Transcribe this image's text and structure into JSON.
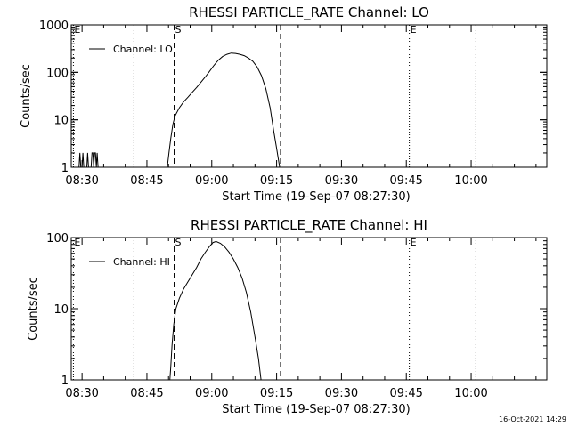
{
  "stamp": "16-Oct-2021 14:29",
  "chart_data": [
    {
      "type": "line",
      "title": "RHESSI PARTICLE_RATE Channel: LO",
      "xlabel": "Start Time (19-Sep-07 08:27:30)",
      "ylabel": "Counts/sec",
      "yscale": "log",
      "ylim": [
        1,
        1000
      ],
      "xlim": [
        0,
        110
      ],
      "x_unit": "minutes since 08:27:30",
      "x_ticks": [
        {
          "t": 2.5,
          "label": "08:30"
        },
        {
          "t": 17.5,
          "label": "08:45"
        },
        {
          "t": 32.5,
          "label": "09:00"
        },
        {
          "t": 47.5,
          "label": "09:15"
        },
        {
          "t": 62.5,
          "label": "09:30"
        },
        {
          "t": 77.5,
          "label": "09:45"
        },
        {
          "t": 92.5,
          "label": "10:00"
        }
      ],
      "y_ticks": [
        {
          "v": 1,
          "label": "1"
        },
        {
          "v": 10,
          "label": "10"
        },
        {
          "v": 100,
          "label": "100"
        },
        {
          "v": 1000,
          "label": "1000"
        }
      ],
      "legend": {
        "label": "Channel: LO",
        "position": "top-left"
      },
      "markers": [
        {
          "t": 0.5,
          "label": "E",
          "style": "dotted"
        },
        {
          "t": 14.5,
          "label": "",
          "style": "dotted"
        },
        {
          "t": 23.8,
          "label": "S",
          "style": "dashed"
        },
        {
          "t": 48.4,
          "label": "",
          "style": "dashed"
        },
        {
          "t": 78.2,
          "label": "E",
          "style": "dotted"
        },
        {
          "t": 93.6,
          "label": "",
          "style": "dotted"
        }
      ],
      "series": [
        {
          "name": "Channel: LO",
          "points": [
            [
              1.8,
              1
            ],
            [
              2.0,
              2
            ],
            [
              2.2,
              1
            ],
            [
              2.5,
              1
            ],
            [
              2.7,
              2
            ],
            [
              2.9,
              1
            ],
            [
              3.6,
              1
            ],
            [
              3.8,
              2
            ],
            [
              4.0,
              1
            ],
            [
              4.6,
              1
            ],
            [
              4.8,
              2
            ],
            [
              5.0,
              2
            ],
            [
              5.2,
              1
            ],
            [
              5.4,
              2
            ],
            [
              5.6,
              2
            ],
            [
              5.8,
              1
            ],
            [
              6.0,
              2
            ],
            [
              6.2,
              1
            ],
            [
              22.2,
              1
            ],
            [
              22.6,
              2
            ],
            [
              23.0,
              4
            ],
            [
              23.5,
              8
            ],
            [
              24.0,
              12
            ],
            [
              25.0,
              18
            ],
            [
              26.0,
              24
            ],
            [
              27.0,
              30
            ],
            [
              28.0,
              38
            ],
            [
              29.0,
              48
            ],
            [
              30.0,
              62
            ],
            [
              31.0,
              80
            ],
            [
              32.0,
              105
            ],
            [
              33.0,
              140
            ],
            [
              34.0,
              180
            ],
            [
              35.0,
              215
            ],
            [
              36.0,
              240
            ],
            [
              37.0,
              255
            ],
            [
              38.0,
              250
            ],
            [
              39.0,
              240
            ],
            [
              40.0,
              225
            ],
            [
              41.0,
              200
            ],
            [
              42.0,
              170
            ],
            [
              43.0,
              130
            ],
            [
              44.0,
              85
            ],
            [
              45.0,
              45
            ],
            [
              46.0,
              18
            ],
            [
              46.8,
              6
            ],
            [
              47.5,
              2.5
            ],
            [
              48.2,
              1
            ]
          ]
        }
      ]
    },
    {
      "type": "line",
      "title": "RHESSI PARTICLE_RATE Channel: HI",
      "xlabel": "Start Time (19-Sep-07 08:27:30)",
      "ylabel": "Counts/sec",
      "yscale": "log",
      "ylim": [
        1,
        100
      ],
      "xlim": [
        0,
        110
      ],
      "x_unit": "minutes since 08:27:30",
      "x_ticks": [
        {
          "t": 2.5,
          "label": "08:30"
        },
        {
          "t": 17.5,
          "label": "08:45"
        },
        {
          "t": 32.5,
          "label": "09:00"
        },
        {
          "t": 47.5,
          "label": "09:15"
        },
        {
          "t": 62.5,
          "label": "09:30"
        },
        {
          "t": 77.5,
          "label": "09:45"
        },
        {
          "t": 92.5,
          "label": "10:00"
        }
      ],
      "y_ticks": [
        {
          "v": 1,
          "label": "1"
        },
        {
          "v": 10,
          "label": "10"
        },
        {
          "v": 100,
          "label": "100"
        }
      ],
      "legend": {
        "label": "Channel: HI",
        "position": "top-left"
      },
      "markers": [
        {
          "t": 0.5,
          "label": "E",
          "style": "dotted"
        },
        {
          "t": 14.5,
          "label": "",
          "style": "dotted"
        },
        {
          "t": 23.8,
          "label": "S",
          "style": "dashed"
        },
        {
          "t": 48.4,
          "label": "",
          "style": "dashed"
        },
        {
          "t": 78.2,
          "label": "E",
          "style": "dotted"
        },
        {
          "t": 93.6,
          "label": "",
          "style": "dotted"
        }
      ],
      "series": [
        {
          "name": "Channel: HI",
          "points": [
            [
              22.8,
              1
            ],
            [
              23.0,
              1.5
            ],
            [
              23.3,
              3
            ],
            [
              23.7,
              6
            ],
            [
              24.2,
              10
            ],
            [
              25.0,
              14
            ],
            [
              26.0,
              19
            ],
            [
              27.0,
              24
            ],
            [
              28.0,
              30
            ],
            [
              29.0,
              38
            ],
            [
              30.0,
              50
            ],
            [
              31.0,
              62
            ],
            [
              32.0,
              75
            ],
            [
              32.8,
              85
            ],
            [
              33.5,
              88
            ],
            [
              34.5,
              83
            ],
            [
              35.5,
              74
            ],
            [
              36.5,
              62
            ],
            [
              37.5,
              50
            ],
            [
              38.5,
              38
            ],
            [
              39.5,
              27
            ],
            [
              40.5,
              17
            ],
            [
              41.5,
              9
            ],
            [
              42.5,
              4
            ],
            [
              43.3,
              2
            ],
            [
              43.9,
              1
            ]
          ]
        }
      ]
    }
  ]
}
